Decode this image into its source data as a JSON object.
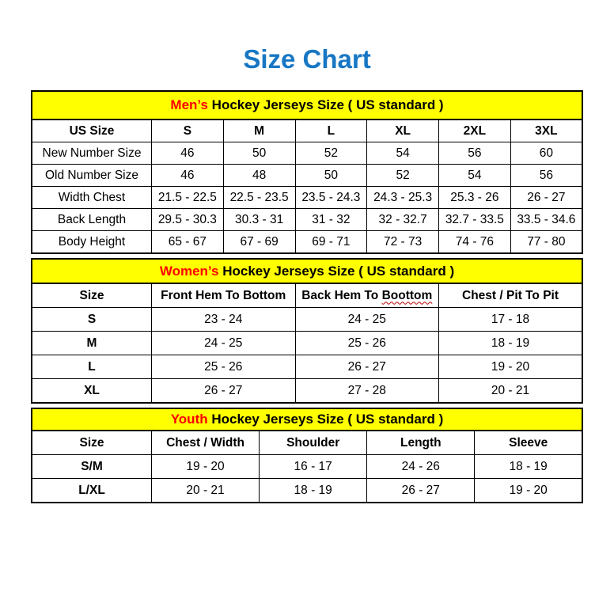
{
  "page": {
    "title": "Size Chart"
  },
  "colors": {
    "title_blue": "#1777C4",
    "accent_red": "#FF0000",
    "banner_yellow": "#FFFF00",
    "border_black": "#000000",
    "spellcheck_squiggle_red": "#C00000"
  },
  "chart_data": [
    {
      "type": "table",
      "id": "mens",
      "title": "Men’s Hockey Jerseys Size ( US standard )",
      "title_highlight": "Men’s",
      "columns": [
        "US Size",
        "S",
        "M",
        "L",
        "XL",
        "2XL",
        "3XL"
      ],
      "rows": [
        [
          "New Number Size",
          "46",
          "50",
          "52",
          "54",
          "56",
          "60"
        ],
        [
          "Old Number Size",
          "46",
          "48",
          "50",
          "52",
          "54",
          "56"
        ],
        [
          "Width Chest",
          "21.5 - 22.5",
          "22.5 - 23.5",
          "23.5 - 24.3",
          "24.3 - 25.3",
          "25.3 - 26",
          "26 - 27"
        ],
        [
          "Back Length",
          "29.5 - 30.3",
          "30.3 - 31",
          "31 - 32",
          "32 - 32.7",
          "32.7 - 33.5",
          "33.5 - 34.6"
        ],
        [
          "Body Height",
          "65 - 67",
          "67 - 69",
          "69 - 71",
          "72 - 73",
          "74 - 76",
          "77 - 80"
        ]
      ]
    },
    {
      "type": "table",
      "id": "womens",
      "title": "Women’s Hockey Jerseys Size ( US standard )",
      "title_highlight": "Women’s",
      "columns": [
        "Size",
        "Front Hem To Bottom",
        "Back Hem To Boottom",
        "Chest / Pit To Pit"
      ],
      "spellcheck_underlined_word": "Boottom",
      "rows": [
        [
          "S",
          "23 - 24",
          "24 - 25",
          "17 - 18"
        ],
        [
          "M",
          "24 - 25",
          "25 - 26",
          "18 - 19"
        ],
        [
          "L",
          "25 - 26",
          "26 - 27",
          "19 - 20"
        ],
        [
          "XL",
          "26 - 27",
          "27 - 28",
          "20 - 21"
        ]
      ]
    },
    {
      "type": "table",
      "id": "youth",
      "title": "Youth Hockey Jerseys Size ( US standard )",
      "title_highlight": "Youth",
      "columns": [
        "Size",
        "Chest / Width",
        "Shoulder",
        "Length",
        "Sleeve"
      ],
      "rows": [
        [
          "S/M",
          "19 - 20",
          "16 - 17",
          "24 - 26",
          "18 - 19"
        ],
        [
          "L/XL",
          "20 - 21",
          "18 - 19",
          "26 - 27",
          "19 - 20"
        ]
      ]
    }
  ]
}
